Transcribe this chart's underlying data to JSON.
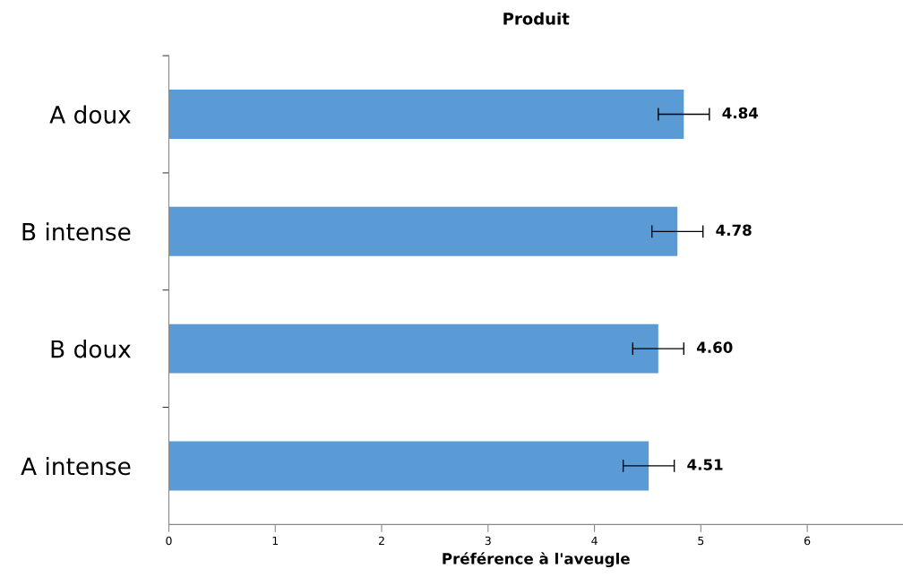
{
  "chart_data": {
    "type": "bar",
    "orientation": "horizontal",
    "title": "Produit",
    "xlabel": "Préférence à l'aveugle",
    "categories": [
      "A doux",
      "B intense",
      "B doux",
      "A intense"
    ],
    "values": [
      4.84,
      4.78,
      4.6,
      4.51
    ],
    "value_labels": [
      "4.84",
      "4.78",
      "4.60",
      "4.51"
    ],
    "errors": [
      0.24,
      0.24,
      0.24,
      0.24
    ],
    "color": "#5b9bd5",
    "xlim": [
      0,
      6.9
    ],
    "xticks": [
      0,
      1,
      2,
      3,
      4,
      5,
      6
    ],
    "grid": false,
    "legend": false
  }
}
